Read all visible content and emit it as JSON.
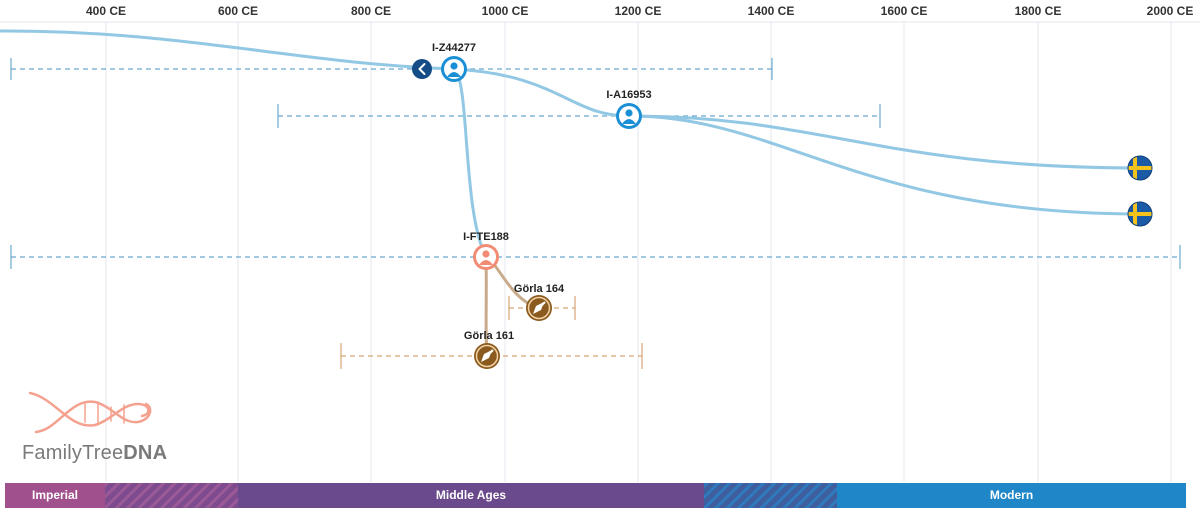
{
  "axis": {
    "ticks": [
      "400 CE",
      "600 CE",
      "800 CE",
      "1000 CE",
      "1200 CE",
      "1400 CE",
      "1600 CE",
      "1800 CE",
      "2000 CE"
    ]
  },
  "nodes": [
    {
      "id": "I-Z44277",
      "kind": "haplogroup",
      "color": "#1b8fd6"
    },
    {
      "id": "I-A16953",
      "kind": "haplogroup",
      "color": "#1b8fd6"
    },
    {
      "id": "I-FTE188",
      "kind": "haplogroup-selected",
      "color": "#f28b73"
    },
    {
      "id": "Görla 164",
      "kind": "ancient-sample",
      "color": "#8b5a1e"
    },
    {
      "id": "Görla 161",
      "kind": "ancient-sample",
      "color": "#8b5a1e"
    }
  ],
  "flags": [
    {
      "country": "Sweden",
      "icon": "sweden-flag-icon"
    },
    {
      "country": "Sweden",
      "icon": "sweden-flag-icon"
    }
  ],
  "logo": {
    "name": "FamilyTreeDNA",
    "part1": "FamilyTree",
    "part2": "DNA"
  },
  "eras": [
    {
      "label": "Imperial",
      "color": "#a1508e"
    },
    {
      "label": "Middle Ages",
      "color": "#6a4a8c"
    },
    {
      "label": "Modern",
      "color": "#1f86c8"
    }
  ],
  "colors": {
    "lineage": "#92c8e3",
    "ancient_lineage": "#c8ab8c",
    "range_blue": "#6aa9cf",
    "range_brown": "#d7a776",
    "grid": "#e3e7ec",
    "back_button": "#134c86"
  }
}
